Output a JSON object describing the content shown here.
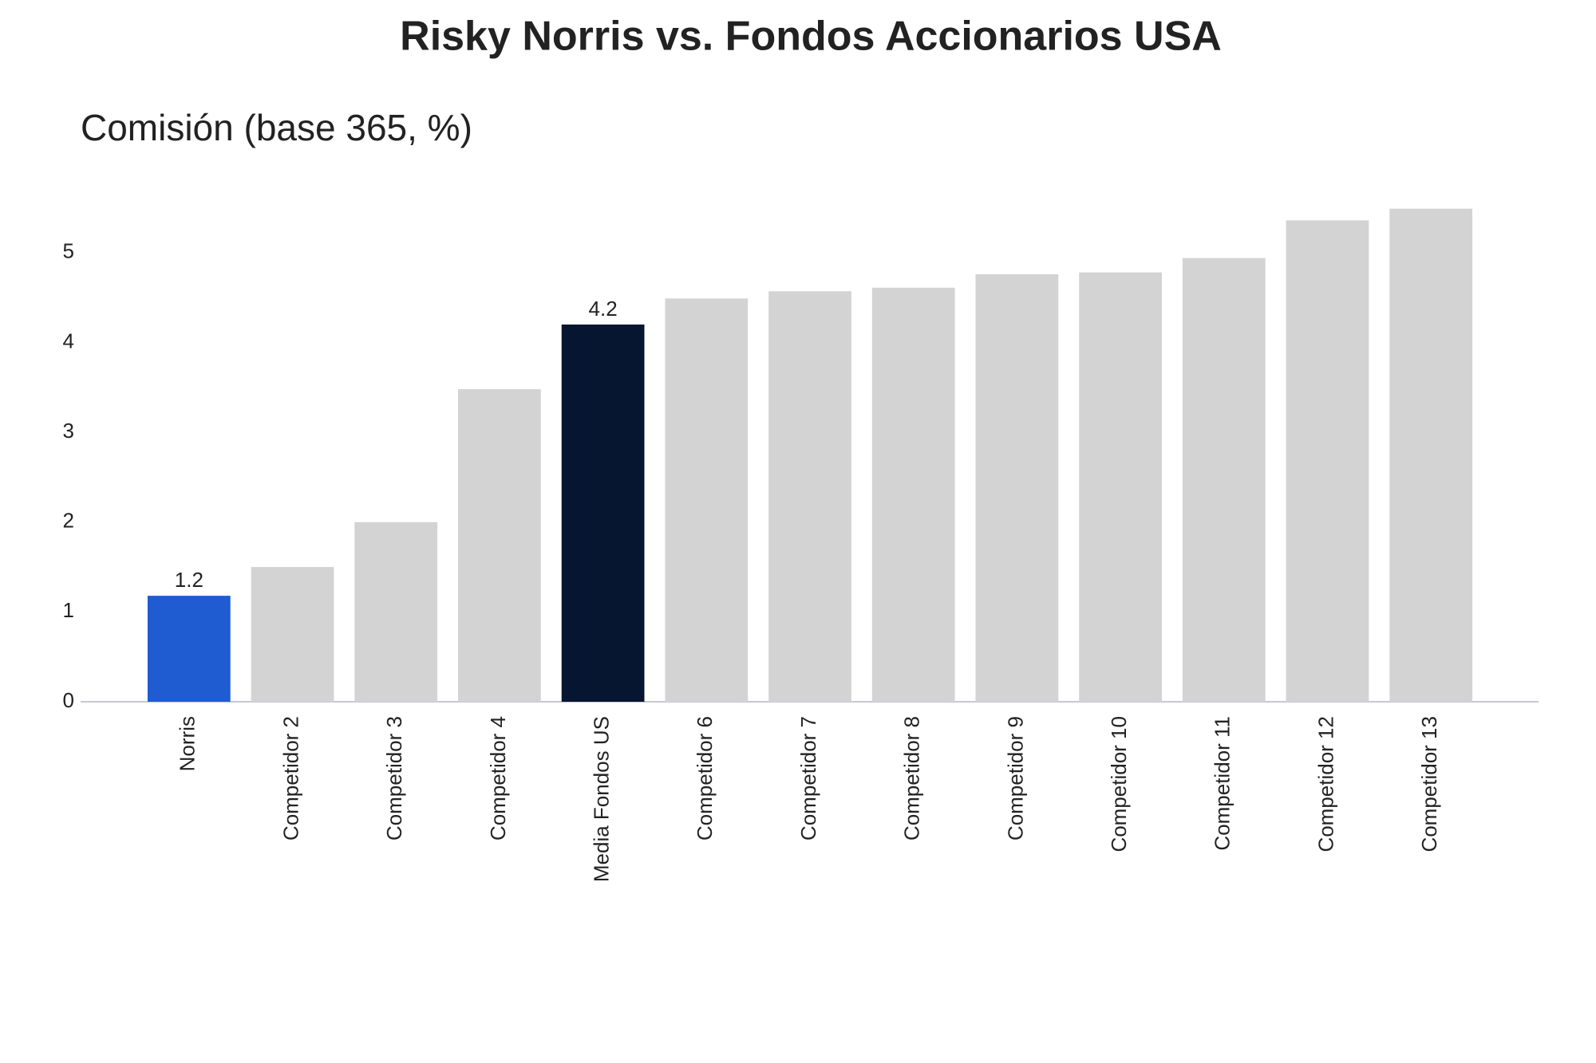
{
  "chart_data": {
    "type": "bar",
    "title": "Risky Norris vs. Fondos Accionarios USA",
    "subtitle": "Comisión (base 365, %)",
    "categories": [
      "Norris",
      "Competidor 2",
      "Competidor 3",
      "Competidor 4",
      "Media Fondos US",
      "Competidor 6",
      "Competidor 7",
      "Competidor 8",
      "Competidor 9",
      "Competidor 10",
      "Competidor 11",
      "Competidor 12",
      "Competidor 13"
    ],
    "values": [
      1.18,
      1.5,
      2.0,
      3.48,
      4.2,
      4.49,
      4.57,
      4.61,
      4.76,
      4.78,
      4.94,
      5.36,
      5.49
    ],
    "value_labels": [
      "1.2",
      null,
      null,
      null,
      "4.2",
      null,
      null,
      null,
      null,
      null,
      null,
      null,
      null
    ],
    "colors": [
      "#1f5bd1",
      "#d3d3d3",
      "#d3d3d3",
      "#d3d3d3",
      "#071630",
      "#d3d3d3",
      "#d3d3d3",
      "#d3d3d3",
      "#d3d3d3",
      "#d3d3d3",
      "#d3d3d3",
      "#d3d3d3",
      "#d3d3d3"
    ],
    "ylim": [
      0,
      5.7
    ],
    "yticks": [
      0,
      1,
      2,
      3,
      4,
      5
    ],
    "grid": false
  }
}
